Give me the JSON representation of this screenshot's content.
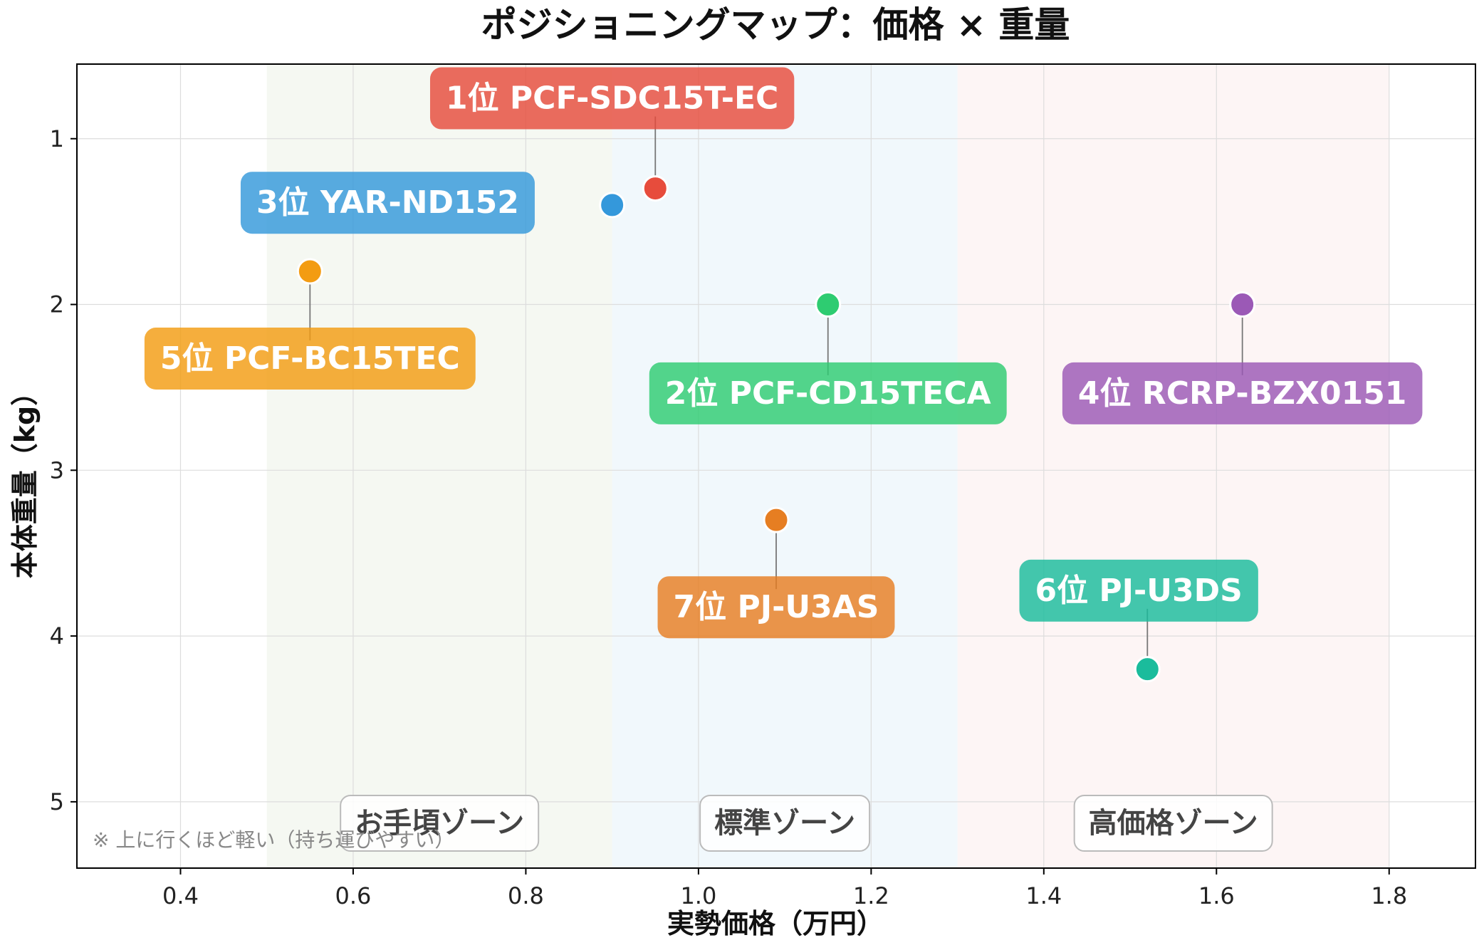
{
  "chart_data": {
    "type": "scatter",
    "title": "ポジショニングマップ：価格 × 重量",
    "xlabel": "実勢価格（万円）",
    "ylabel": "本体重量（kg）",
    "xlim": [
      0.28,
      1.9
    ],
    "ylim": [
      0.55,
      5.4
    ],
    "y_inverted": true,
    "grid": true,
    "x_ticks": [
      0.4,
      0.6,
      0.8,
      1.0,
      1.2,
      1.4,
      1.6,
      1.8
    ],
    "x_tick_labels": [
      "0.4",
      "0.6",
      "0.8",
      "1.0",
      "1.2",
      "1.4",
      "1.6",
      "1.8"
    ],
    "y_ticks": [
      1,
      2,
      3,
      4,
      5
    ],
    "y_tick_labels": [
      "1",
      "2",
      "3",
      "4",
      "5"
    ],
    "zones": [
      {
        "label": "お手頃ゾーン",
        "x_range": [
          0.5,
          0.9
        ],
        "color": "#eef3ea"
      },
      {
        "label": "標準ゾーン",
        "x_range": [
          0.9,
          1.3
        ],
        "color": "#e8f3fa"
      },
      {
        "label": "高価格ゾーン",
        "x_range": [
          1.3,
          1.8
        ],
        "color": "#fbeeee"
      }
    ],
    "points": [
      {
        "label": "1位 PCF-SDC15T-EC",
        "x": 0.95,
        "y": 1.3,
        "color": "#e74c3c",
        "label_at": [
          0.9,
          0.75
        ]
      },
      {
        "label": "2位 PCF-CD15TECA",
        "x": 1.15,
        "y": 2.0,
        "color": "#2ecc71",
        "label_at": [
          1.15,
          2.53
        ]
      },
      {
        "label": "3位 YAR-ND152",
        "x": 0.9,
        "y": 1.4,
        "color": "#3498db",
        "label_at": [
          0.64,
          1.38
        ]
      },
      {
        "label": "4位 RCRP-BZX0151",
        "x": 1.63,
        "y": 2.0,
        "color": "#9b59b6",
        "label_at": [
          1.63,
          2.53
        ]
      },
      {
        "label": "5位 PCF-BC15TEC",
        "x": 0.55,
        "y": 1.8,
        "color": "#f39c12",
        "label_at": [
          0.55,
          2.32
        ]
      },
      {
        "label": "6位 PJ-U3DS",
        "x": 1.52,
        "y": 4.2,
        "color": "#1abc9c",
        "label_at": [
          1.51,
          3.72
        ]
      },
      {
        "label": "7位 PJ-U3AS",
        "x": 1.09,
        "y": 3.3,
        "color": "#e67e22",
        "label_at": [
          1.09,
          3.82
        ]
      }
    ],
    "note": "※ 上に行くほど軽い（持ち運びやすい）"
  }
}
